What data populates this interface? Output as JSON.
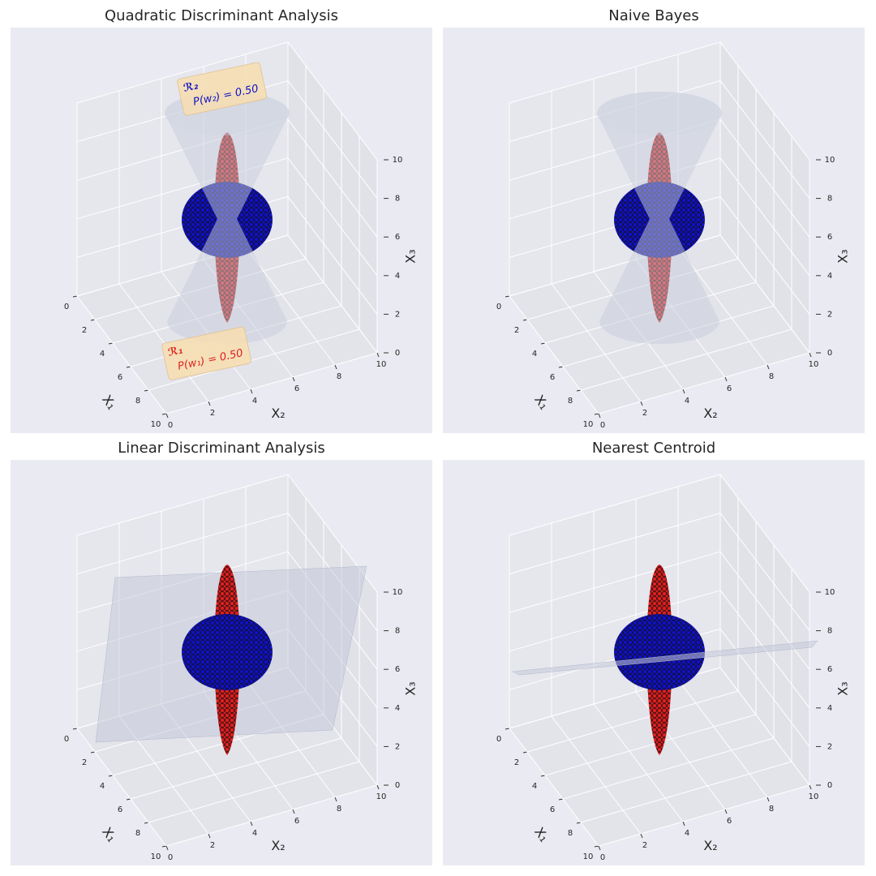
{
  "chart_data": [
    {
      "type": "scatter3d",
      "title": "Quadratic Discriminant Analysis",
      "boundary": "cone",
      "xlabel": "X₁",
      "ylabel": "X₂",
      "zlabel": "X₃",
      "xlim": [
        0,
        10
      ],
      "ylim": [
        0,
        10
      ],
      "zlim": [
        0,
        10
      ],
      "xticks": [
        0,
        2,
        4,
        6,
        8,
        10
      ],
      "yticks": [
        0,
        2,
        4,
        6,
        8,
        10
      ],
      "zticks": [
        0,
        2,
        4,
        6,
        8,
        10
      ],
      "colors": [
        "#1010c8",
        "#e01e1e"
      ],
      "annotations": [
        {
          "label": "ℛ₂",
          "text": "P(w₂) = 0.50",
          "color": "#1010c8"
        },
        {
          "label": "ℛ₁",
          "text": "P(w₁) = 0.50",
          "color": "#e01e1e"
        }
      ]
    },
    {
      "type": "scatter3d",
      "title": "Naive Bayes",
      "boundary": "cone",
      "xlabel": "X₁",
      "ylabel": "X₂",
      "zlabel": "X₃",
      "xlim": [
        0,
        10
      ],
      "ylim": [
        0,
        10
      ],
      "zlim": [
        0,
        10
      ],
      "xticks": [
        0,
        2,
        4,
        6,
        8,
        10
      ],
      "yticks": [
        0,
        2,
        4,
        6,
        8,
        10
      ],
      "zticks": [
        0,
        2,
        4,
        6,
        8,
        10
      ],
      "colors": [
        "#1010c8",
        "#e01e1e"
      ]
    },
    {
      "type": "scatter3d",
      "title": "Linear Discriminant Analysis",
      "boundary": "plane",
      "xlabel": "X₁",
      "ylabel": "X₂",
      "zlabel": "X₃",
      "xlim": [
        0,
        10
      ],
      "ylim": [
        0,
        10
      ],
      "zlim": [
        0,
        10
      ],
      "xticks": [
        0,
        2,
        4,
        6,
        8,
        10
      ],
      "yticks": [
        0,
        2,
        4,
        6,
        8,
        10
      ],
      "zticks": [
        0,
        2,
        4,
        6,
        8,
        10
      ],
      "colors": [
        "#1010c8",
        "#e01e1e"
      ]
    },
    {
      "type": "scatter3d",
      "title": "Nearest Centroid",
      "boundary": "flat-plane",
      "xlabel": "X₁",
      "ylabel": "X₂",
      "zlabel": "X₃",
      "xlim": [
        0,
        10
      ],
      "ylim": [
        0,
        10
      ],
      "zlim": [
        0,
        10
      ],
      "xticks": [
        0,
        2,
        4,
        6,
        8,
        10
      ],
      "yticks": [
        0,
        2,
        4,
        6,
        8,
        10
      ],
      "zticks": [
        0,
        2,
        4,
        6,
        8,
        10
      ],
      "colors": [
        "#1010c8",
        "#e01e1e"
      ]
    }
  ]
}
